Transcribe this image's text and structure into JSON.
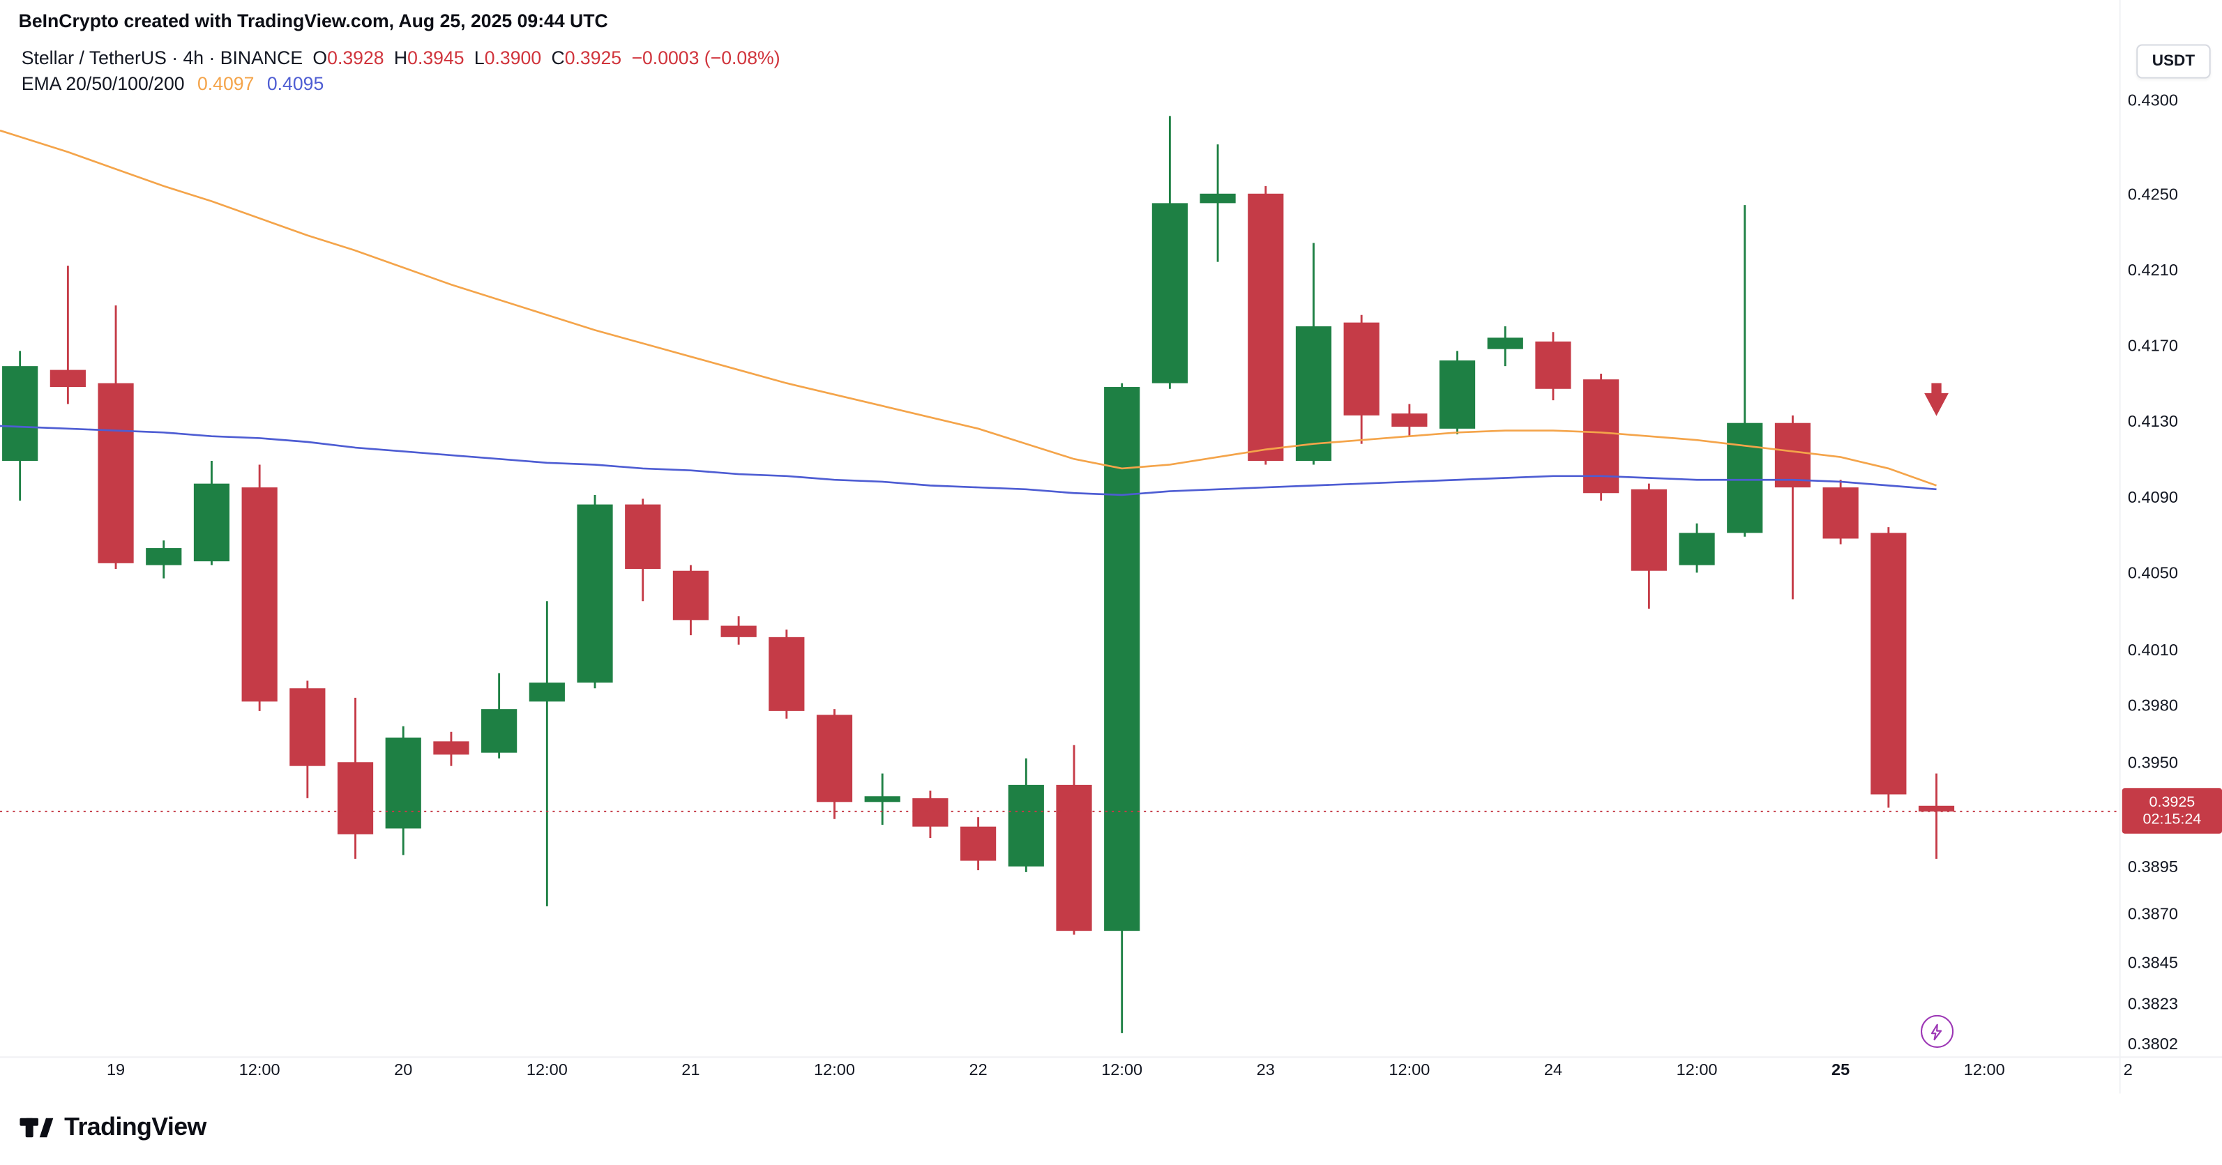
{
  "header": {
    "attribution": "BeInCrypto created with TradingView.com, Aug 25, 2025 09:44 UTC",
    "symbol_line": {
      "title": "Stellar / TetherUS · 4h · BINANCE",
      "ohlc": [
        {
          "label": "O",
          "value": "0.3928"
        },
        {
          "label": "H",
          "value": "0.3945"
        },
        {
          "label": "L",
          "value": "0.3900"
        },
        {
          "label": "C",
          "value": "0.3925"
        }
      ],
      "change": "−0.0003 (−0.08%)"
    },
    "indicator_line": {
      "name": "EMA 20/50/100/200",
      "value_orange": "0.4097",
      "value_blue": "0.4095"
    }
  },
  "currency_button": "USDT",
  "colors": {
    "up": "#1e8044",
    "down": "#c53b47",
    "orange": "#f4a44a",
    "blue": "#4e5dd3",
    "purple": "#9c36b5",
    "text": "#131722",
    "ohlc_value_red": "#d0343c"
  },
  "price_axis": {
    "labels": [
      "0.4300",
      "0.4250",
      "0.4210",
      "0.4170",
      "0.4130",
      "0.4090",
      "0.4050",
      "0.4010",
      "0.3980",
      "0.3950",
      "0.3895",
      "0.3870",
      "0.3845",
      "0.3823",
      "0.3802"
    ],
    "current": {
      "price": "0.3925",
      "countdown": "02:15:24"
    }
  },
  "time_axis": [
    {
      "label": "19",
      "bar": 2,
      "bold": false
    },
    {
      "label": "12:00",
      "bar": 5,
      "bold": false
    },
    {
      "label": "20",
      "bar": 8,
      "bold": false
    },
    {
      "label": "12:00",
      "bar": 11,
      "bold": false
    },
    {
      "label": "21",
      "bar": 14,
      "bold": false
    },
    {
      "label": "12:00",
      "bar": 17,
      "bold": false
    },
    {
      "label": "22",
      "bar": 20,
      "bold": false
    },
    {
      "label": "12:00",
      "bar": 23,
      "bold": false
    },
    {
      "label": "23",
      "bar": 26,
      "bold": false
    },
    {
      "label": "12:00",
      "bar": 29,
      "bold": false
    },
    {
      "label": "24",
      "bar": 32,
      "bold": false
    },
    {
      "label": "12:00",
      "bar": 35,
      "bold": false
    },
    {
      "label": "25",
      "bar": 38,
      "bold": true
    },
    {
      "label": "12:00",
      "bar": 41,
      "bold": false
    },
    {
      "label": "2",
      "bar": 44,
      "bold": false
    }
  ],
  "logo": {
    "text": "TradingView"
  },
  "chart_data": {
    "type": "candlestick",
    "title": "Stellar / TetherUS · 4h · BINANCE",
    "timeframe": "4h",
    "ylim": [
      0.3795,
      0.4308
    ],
    "bars_per_day": 6,
    "current_price": 0.3925,
    "current_bar_ohlc": {
      "open": 0.3928,
      "high": 0.3945,
      "low": 0.39,
      "close": 0.3925,
      "change": -0.0003,
      "change_pct": -0.08
    },
    "candles_format": [
      "open",
      "high",
      "low",
      "close"
    ],
    "candles": [
      [
        0.411,
        0.4168,
        0.4089,
        0.416
      ],
      [
        0.4158,
        0.4213,
        0.414,
        0.4149
      ],
      [
        0.4151,
        0.4192,
        0.4053,
        0.4056
      ],
      [
        0.4055,
        0.4068,
        0.4048,
        0.4064
      ],
      [
        0.4057,
        0.411,
        0.4055,
        0.4098
      ],
      [
        0.4096,
        0.4108,
        0.3978,
        0.3983
      ],
      [
        0.399,
        0.3994,
        0.3932,
        0.3949
      ],
      [
        0.3951,
        0.3985,
        0.39,
        0.3913
      ],
      [
        0.3916,
        0.397,
        0.3902,
        0.3964
      ],
      [
        0.3962,
        0.3967,
        0.3949,
        0.3955
      ],
      [
        0.3956,
        0.3998,
        0.3953,
        0.3979
      ],
      [
        0.3983,
        0.4036,
        0.3875,
        0.3993
      ],
      [
        0.3993,
        0.4092,
        0.399,
        0.4087
      ],
      [
        0.4087,
        0.409,
        0.4036,
        0.4053
      ],
      [
        0.4052,
        0.4055,
        0.4018,
        0.4026
      ],
      [
        0.4023,
        0.4028,
        0.4013,
        0.4017
      ],
      [
        0.4017,
        0.4021,
        0.3974,
        0.3978
      ],
      [
        0.3976,
        0.3979,
        0.3921,
        0.393
      ],
      [
        0.393,
        0.3945,
        0.3918,
        0.3933
      ],
      [
        0.3932,
        0.3936,
        0.3911,
        0.3917
      ],
      [
        0.3917,
        0.3922,
        0.3894,
        0.3899
      ],
      [
        0.3896,
        0.3953,
        0.3893,
        0.3939
      ],
      [
        0.3939,
        0.396,
        0.386,
        0.3862
      ],
      [
        0.3862,
        0.4151,
        0.3808,
        0.4149
      ],
      [
        0.4151,
        0.4292,
        0.4148,
        0.4246
      ],
      [
        0.4246,
        0.4277,
        0.4215,
        0.4251
      ],
      [
        0.4251,
        0.4255,
        0.4108,
        0.411
      ],
      [
        0.411,
        0.4225,
        0.4108,
        0.4181
      ],
      [
        0.4183,
        0.4187,
        0.4119,
        0.4134
      ],
      [
        0.4135,
        0.414,
        0.4123,
        0.4128
      ],
      [
        0.4127,
        0.4168,
        0.4124,
        0.4163
      ],
      [
        0.4169,
        0.4181,
        0.416,
        0.4175
      ],
      [
        0.4173,
        0.4178,
        0.4142,
        0.4148
      ],
      [
        0.4153,
        0.4156,
        0.4089,
        0.4093
      ],
      [
        0.4095,
        0.4098,
        0.4032,
        0.4052
      ],
      [
        0.4055,
        0.4077,
        0.4051,
        0.4072
      ],
      [
        0.4072,
        0.4245,
        0.407,
        0.413
      ],
      [
        0.413,
        0.4134,
        0.4037,
        0.4096
      ],
      [
        0.4096,
        0.41,
        0.4066,
        0.4069
      ],
      [
        0.4072,
        0.4075,
        0.3927,
        0.3934
      ],
      [
        0.3928,
        0.3945,
        0.39,
        0.3925
      ]
    ],
    "ema_orange": [
      0.4281,
      0.4273,
      0.4264,
      0.4255,
      0.4247,
      0.4238,
      0.4229,
      0.4221,
      0.4212,
      0.4203,
      0.4195,
      0.4187,
      0.4179,
      0.4172,
      0.4165,
      0.4158,
      0.4151,
      0.4145,
      0.4139,
      0.4133,
      0.4127,
      0.4119,
      0.4111,
      0.4106,
      0.4108,
      0.4112,
      0.4116,
      0.4119,
      0.4121,
      0.4123,
      0.4125,
      0.4126,
      0.4126,
      0.4125,
      0.4123,
      0.4121,
      0.4118,
      0.4115,
      0.4112,
      0.4106,
      0.4097
    ],
    "ema_blue": [
      0.4128,
      0.4127,
      0.4126,
      0.4125,
      0.4123,
      0.4122,
      0.412,
      0.4117,
      0.4115,
      0.4113,
      0.4111,
      0.4109,
      0.4108,
      0.4106,
      0.4105,
      0.4103,
      0.4102,
      0.41,
      0.4099,
      0.4097,
      0.4096,
      0.4095,
      0.4093,
      0.4092,
      0.4094,
      0.4095,
      0.4096,
      0.4097,
      0.4098,
      0.4099,
      0.41,
      0.4101,
      0.4102,
      0.4102,
      0.4101,
      0.41,
      0.41,
      0.41,
      0.4099,
      0.4097,
      0.4095
    ],
    "marker": {
      "type": "arrow-down",
      "bar": 40,
      "price": 0.4142
    },
    "legend_position": "top-left",
    "grid": false
  }
}
